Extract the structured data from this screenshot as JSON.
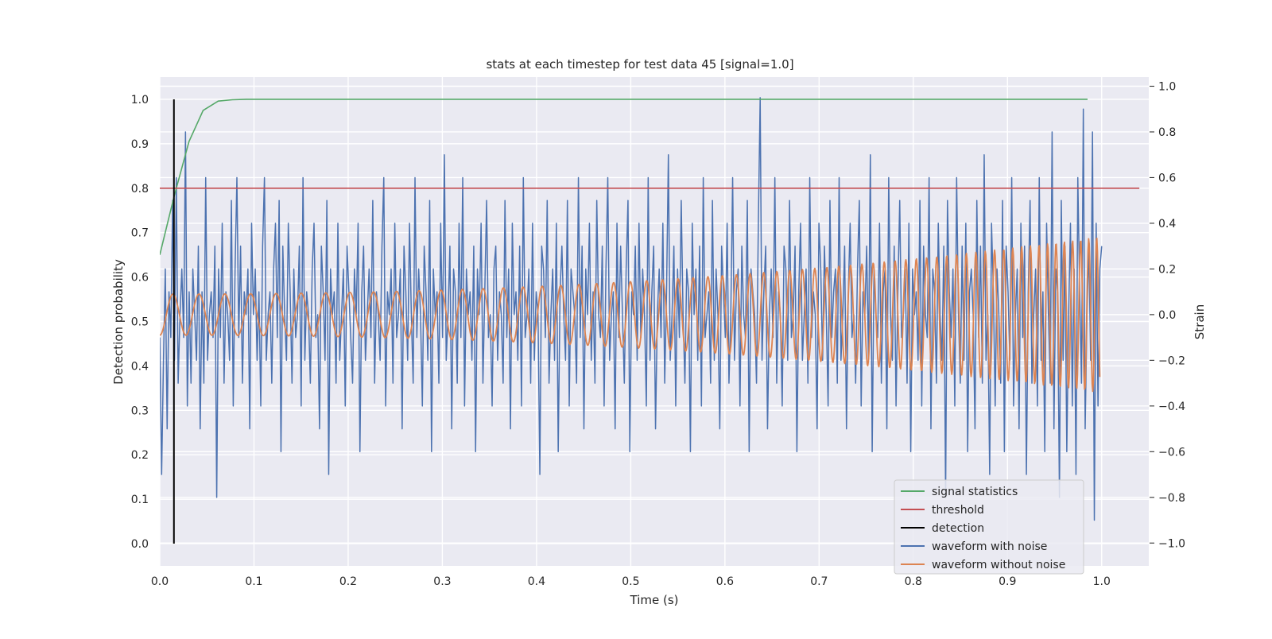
{
  "chart_data": {
    "type": "line",
    "title": "stats at each timestep for test data 45 [signal=1.0]",
    "xlabel": "Time (s)",
    "ylabel": "Detection probability",
    "ylabel_right": "Strain",
    "xlim": [
      0.0,
      1.05
    ],
    "ylim": [
      -0.05,
      1.05
    ],
    "ylim_right": [
      -1.1,
      1.04
    ],
    "x_ticks": [
      "0.0",
      "0.1",
      "0.2",
      "0.3",
      "0.4",
      "0.5",
      "0.6",
      "0.7",
      "0.8",
      "0.9",
      "1.0"
    ],
    "y_ticks": [
      "0.0",
      "0.1",
      "0.2",
      "0.3",
      "0.4",
      "0.5",
      "0.6",
      "0.7",
      "0.8",
      "0.9",
      "1.0"
    ],
    "y_ticks_right": [
      "−1.0",
      "−0.8",
      "−0.6",
      "−0.4",
      "−0.2",
      "0.0",
      "0.2",
      "0.4",
      "0.6",
      "0.8",
      "1.0"
    ],
    "grid": true,
    "legend_position": "lower right",
    "series": [
      {
        "name": "signal statistics",
        "color": "#55a868",
        "axis": "left",
        "x": [
          0.0,
          0.015,
          0.031,
          0.046,
          0.062,
          0.077,
          0.092,
          0.108,
          0.2,
          0.4,
          0.6,
          0.8,
          0.985
        ],
        "y": [
          0.65,
          0.78,
          0.905,
          0.975,
          0.996,
          0.999,
          1.0,
          1.0,
          1.0,
          1.0,
          1.0,
          1.0,
          1.0
        ]
      },
      {
        "name": "threshold",
        "color": "#c44e52",
        "axis": "left",
        "x": [
          0.0,
          1.04
        ],
        "y": [
          0.8,
          0.8
        ]
      },
      {
        "name": "detection",
        "color": "#000000",
        "axis": "left",
        "x": [
          0.015,
          0.015
        ],
        "y": [
          0.0,
          1.0
        ]
      },
      {
        "name": "waveform with noise",
        "color": "#4c72b0",
        "axis": "right",
        "x_start": 0.0,
        "x_end": 1.0,
        "y": [
          -0.1,
          -0.7,
          -0.2,
          0.2,
          -0.5,
          0.1,
          -0.1,
          0.5,
          -0.2,
          0.6,
          -0.3,
          0.0,
          0.2,
          -0.1,
          0.8,
          -0.4,
          0.1,
          -0.3,
          0.2,
          0.0,
          -0.2,
          0.3,
          -0.5,
          0.1,
          -0.3,
          0.6,
          -0.2,
          0.0,
          0.1,
          -0.1,
          0.3,
          -0.8,
          0.2,
          -0.1,
          0.4,
          -0.3,
          0.1,
          0.0,
          -0.2,
          0.5,
          -0.4,
          0.2,
          0.6,
          -0.1,
          0.3,
          -0.3,
          0.1,
          0.0,
          0.2,
          -0.5,
          0.4,
          0.0,
          0.2,
          -0.2,
          0.1,
          -0.4,
          0.3,
          0.6,
          -0.2,
          0.0,
          0.1,
          -0.3,
          0.2,
          0.4,
          -0.1,
          0.5,
          -0.6,
          0.3,
          0.0,
          -0.2,
          0.4,
          0.1,
          -0.3,
          0.2,
          -0.1,
          0.0,
          0.3,
          -0.4,
          0.6,
          -0.2,
          0.1,
          0.0,
          -0.3,
          0.2,
          0.4,
          -0.1,
          0.0,
          -0.5,
          0.3,
          0.1,
          -0.2,
          0.5,
          -0.7,
          0.2,
          0.0,
          0.1,
          -0.3,
          0.4,
          -0.2,
          0.0,
          0.2,
          -0.4,
          0.3,
          0.1,
          -0.1,
          -0.3,
          0.2,
          0.0,
          0.4,
          -0.6,
          0.1,
          0.3,
          -0.2,
          0.0,
          0.2,
          -0.1,
          0.5,
          -0.3,
          0.1,
          0.0,
          -0.2,
          0.3,
          0.6,
          -0.4,
          0.1,
          0.0,
          0.2,
          -0.3,
          0.4,
          -0.1,
          0.0,
          0.2,
          -0.5,
          0.3,
          0.1,
          -0.2,
          0.4,
          0.0,
          -0.3,
          0.6,
          -0.1,
          0.2,
          0.0,
          -0.4,
          0.3,
          0.1,
          -0.2,
          0.5,
          -0.6,
          0.2,
          0.0,
          0.1,
          -0.3,
          0.4,
          -0.1,
          0.7,
          -0.2,
          0.0,
          0.3,
          -0.5,
          0.2,
          0.1,
          -0.3,
          0.4,
          -0.1,
          0.6,
          -0.4,
          0.2,
          0.0,
          0.1,
          -0.2,
          0.3,
          -0.6,
          0.2,
          0.0,
          0.4,
          -0.3,
          0.1,
          0.5,
          -0.1,
          0.0,
          -0.4,
          0.2,
          0.3,
          -0.2,
          0.1,
          0.0,
          -0.3,
          0.5,
          -0.1,
          0.2,
          -0.5,
          0.4,
          0.0,
          0.1,
          -0.2,
          0.3,
          -0.4,
          0.6,
          -0.1,
          0.0,
          0.2,
          -0.3,
          0.4,
          -0.2,
          0.1,
          0.0,
          -0.7,
          0.3,
          0.2,
          -0.1,
          0.5,
          -0.3,
          0.0,
          0.2,
          -0.2,
          0.4,
          -0.6,
          0.1,
          0.3,
          0.0,
          -0.2,
          0.5,
          -0.4,
          0.2,
          0.1,
          0.0,
          -0.3,
          0.6,
          -0.1,
          0.3,
          -0.5,
          0.2,
          0.0,
          0.4,
          -0.2,
          0.1,
          -0.3,
          0.5,
          0.0,
          -0.1,
          0.3,
          -0.4,
          0.2,
          0.6,
          -0.2,
          0.0,
          0.1,
          -0.5,
          0.4,
          -0.1,
          0.3,
          0.0,
          -0.3,
          0.2,
          0.5,
          -0.6,
          0.1,
          0.0,
          0.3,
          -0.2,
          0.4,
          -0.1,
          0.2,
          0.0,
          -0.4,
          0.6,
          -0.2,
          0.1,
          0.3,
          -0.5,
          0.0,
          0.2,
          -0.1,
          0.4,
          -0.3,
          0.1,
          0.7,
          -0.2,
          0.0,
          0.3,
          -0.4,
          0.2,
          -0.1,
          0.5,
          0.0,
          -0.3,
          0.2,
          0.1,
          -0.6,
          0.4,
          0.0,
          0.2,
          -0.2,
          0.3,
          -0.4,
          0.6,
          -0.1,
          0.0,
          0.1,
          -0.3,
          0.5,
          -0.2,
          0.2,
          0.0,
          -0.5,
          0.3,
          0.1,
          -0.1,
          0.4,
          -0.3,
          0.0,
          0.6,
          -0.2,
          0.1,
          0.2,
          -0.4,
          0.3,
          0.0,
          -0.1,
          0.5,
          -0.6,
          0.2,
          0.1,
          0.0,
          -0.3,
          0.4,
          0.95,
          -0.2,
          0.1,
          0.3,
          -0.5,
          0.0,
          0.2,
          -0.1,
          0.6,
          -0.3,
          0.1,
          0.0,
          -0.4,
          0.3,
          0.2,
          -0.2,
          0.5,
          -0.1,
          0.0,
          0.3,
          -0.6,
          0.1,
          0.4,
          -0.2,
          0.0,
          0.2,
          -0.3,
          0.6,
          -0.1,
          0.1,
          0.0,
          -0.5,
          0.4,
          0.2,
          -0.2,
          0.3,
          0.0,
          -0.4,
          0.5,
          -0.1,
          0.1,
          0.2,
          -0.3,
          0.6,
          -0.2,
          0.0,
          0.3,
          -0.5,
          0.1,
          0.4,
          -0.1,
          0.0,
          -0.3,
          0.2,
          0.5,
          -0.4,
          0.1,
          0.0,
          0.3,
          -0.2,
          0.7,
          -0.6,
          0.2,
          0.0,
          -0.1,
          0.4,
          -0.3,
          0.1,
          0.2,
          -0.5,
          0.6,
          0.0,
          -0.2,
          0.3,
          -0.4,
          0.1,
          0.5,
          -0.1,
          0.0,
          0.2,
          -0.3,
          0.4,
          -0.6,
          0.2,
          0.0,
          0.1,
          -0.2,
          0.5,
          -0.4,
          0.3,
          0.0,
          -0.1,
          0.6,
          -0.5,
          0.2,
          0.1,
          -0.3,
          0.4,
          0.0,
          -0.2,
          0.3,
          -0.8,
          0.5,
          0.1,
          -0.1,
          0.2,
          -0.4,
          0.6,
          0.0,
          -0.3,
          0.3,
          -0.2,
          0.4,
          -0.6,
          0.1,
          0.2,
          0.0,
          -0.5,
          0.5,
          -0.1,
          0.3,
          -0.3,
          0.7,
          -0.2,
          0.0,
          -0.7,
          0.4,
          0.1,
          -0.4,
          0.2,
          0.0,
          -0.3,
          0.5,
          -0.6,
          0.3,
          0.1,
          -0.2,
          0.6,
          -0.4,
          0.0,
          0.2,
          -0.5,
          0.4,
          -0.1,
          0.3,
          -0.7,
          0.1,
          0.5,
          -0.3,
          0.0,
          0.2,
          -0.4,
          0.6,
          -0.2,
          0.1,
          -0.6,
          0.4,
          0.0,
          -0.3,
          0.8,
          -0.5,
          0.2,
          0.1,
          -0.8,
          0.5,
          -0.2,
          0.3,
          -0.6,
          0.0,
          0.4,
          -0.4,
          0.2,
          -0.7,
          0.6,
          0.1,
          -0.3,
          0.9,
          -0.5,
          0.0,
          0.3,
          -0.2,
          0.8,
          -0.9,
          0.4,
          -0.4,
          0.2,
          0.3
        ]
      },
      {
        "name": "waveform without noise",
        "color": "#dd8452",
        "axis": "right",
        "x_start": 0.0,
        "x_end": 0.998,
        "amplitude_start": 0.09,
        "amplitude_end": 0.34,
        "freq_start_hz": 36,
        "freq_end_hz": 120
      }
    ],
    "legend": [
      "signal statistics",
      "threshold",
      "detection",
      "waveform with noise",
      "waveform without noise"
    ]
  }
}
